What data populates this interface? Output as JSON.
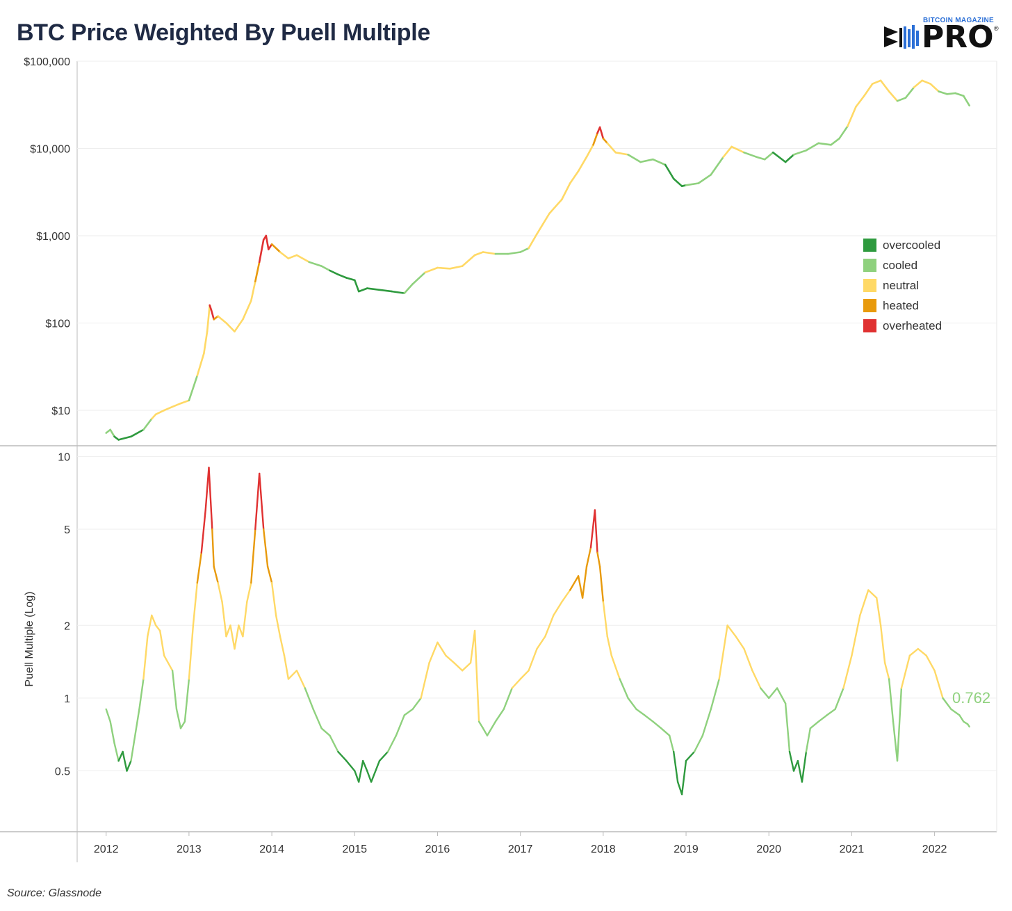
{
  "header": {
    "title": "BTC Price Weighted By Puell Multiple"
  },
  "logo": {
    "top_text": "BITCOIN MAGAZINE",
    "main_text": "PRO",
    "reg": "®"
  },
  "footer": {
    "source": "Source: Glassnode"
  },
  "legend": [
    {
      "label": "overcooled",
      "color": "#2e9a3e"
    },
    {
      "label": "cooled",
      "color": "#8fd17e"
    },
    {
      "label": "neutral",
      "color": "#ffd966"
    },
    {
      "label": "heated",
      "color": "#e89a0c"
    },
    {
      "label": "overheated",
      "color": "#e03131"
    }
  ],
  "chart_data": [
    {
      "type": "line",
      "title": "",
      "y_scale": "log",
      "ylim": [
        4,
        100000
      ],
      "xlim": [
        2011.65,
        2022.75
      ],
      "y_ticks": [
        {
          "value": 100000,
          "label": "$100,000"
        },
        {
          "value": 10000,
          "label": "$10,000"
        },
        {
          "value": 1000,
          "label": "$1,000"
        },
        {
          "value": 100,
          "label": "$100"
        },
        {
          "value": 10,
          "label": "$10"
        }
      ],
      "grid": true,
      "legend_position": "right",
      "series": [
        {
          "x": [
            2012.0,
            2012.05,
            2012.1,
            2012.15,
            2012.3,
            2012.45,
            2012.55,
            2012.6,
            2012.7,
            2012.8,
            2012.9,
            2013.0,
            2013.1,
            2013.18,
            2013.22,
            2013.25,
            2013.27,
            2013.3,
            2013.35,
            2013.45,
            2013.55,
            2013.65,
            2013.75,
            2013.8,
            2013.85,
            2013.9,
            2013.93,
            2013.96,
            2014.0,
            2014.1,
            2014.2,
            2014.3,
            2014.45,
            2014.6,
            2014.7,
            2014.8,
            2014.9,
            2015.0,
            2015.05,
            2015.15,
            2015.3,
            2015.45,
            2015.6,
            2015.7,
            2015.85,
            2016.0,
            2016.15,
            2016.3,
            2016.45,
            2016.55,
            2016.7,
            2016.85,
            2017.0,
            2017.1,
            2017.2,
            2017.35,
            2017.5,
            2017.6,
            2017.7,
            2017.8,
            2017.88,
            2017.93,
            2017.96,
            2018.0,
            2018.05,
            2018.15,
            2018.3,
            2018.45,
            2018.6,
            2018.75,
            2018.85,
            2018.95,
            2019.0,
            2019.15,
            2019.3,
            2019.45,
            2019.55,
            2019.7,
            2019.85,
            2019.95,
            2020.05,
            2020.2,
            2020.3,
            2020.45,
            2020.6,
            2020.75,
            2020.85,
            2020.95,
            2021.05,
            2021.15,
            2021.25,
            2021.35,
            2021.45,
            2021.55,
            2021.65,
            2021.75,
            2021.85,
            2021.95,
            2022.05,
            2022.15,
            2022.25,
            2022.35,
            2022.42
          ],
          "values": [
            5.5,
            6,
            5,
            4.6,
            5,
            6,
            8,
            9,
            10,
            11,
            12,
            13,
            25,
            45,
            80,
            160,
            140,
            110,
            120,
            100,
            80,
            110,
            180,
            300,
            500,
            900,
            1000,
            700,
            800,
            650,
            550,
            600,
            500,
            450,
            400,
            360,
            330,
            310,
            230,
            250,
            240,
            230,
            220,
            280,
            380,
            430,
            420,
            450,
            600,
            650,
            620,
            620,
            650,
            720,
            1050,
            1800,
            2600,
            4000,
            5500,
            8000,
            11000,
            15000,
            17500,
            13000,
            11500,
            9000,
            8500,
            7000,
            7500,
            6500,
            4500,
            3700,
            3800,
            4000,
            5000,
            8000,
            10500,
            9000,
            8000,
            7500,
            9000,
            7000,
            8500,
            9500,
            11500,
            11000,
            13000,
            18000,
            30000,
            40000,
            55000,
            60000,
            45000,
            35000,
            38000,
            50000,
            60000,
            55000,
            45000,
            42000,
            43000,
            40000,
            31000
          ],
          "classes": [
            1,
            1,
            0,
            0,
            0,
            1,
            2,
            2,
            2,
            2,
            2,
            1,
            2,
            2,
            2,
            4,
            4,
            3,
            2,
            2,
            2,
            2,
            2,
            3,
            4,
            4,
            4,
            4,
            3,
            2,
            2,
            2,
            1,
            1,
            0,
            0,
            0,
            0,
            0,
            0,
            0,
            0,
            1,
            1,
            2,
            2,
            2,
            2,
            2,
            2,
            1,
            1,
            1,
            2,
            2,
            2,
            2,
            2,
            2,
            2,
            3,
            4,
            4,
            3,
            2,
            2,
            1,
            1,
            1,
            0,
            0,
            0,
            1,
            1,
            1,
            2,
            2,
            1,
            1,
            1,
            0,
            0,
            1,
            1,
            1,
            1,
            1,
            2,
            2,
            2,
            2,
            2,
            2,
            1,
            1,
            2,
            2,
            2,
            1,
            1,
            1,
            1,
            1
          ]
        }
      ]
    },
    {
      "type": "line",
      "title": "",
      "y_scale": "log",
      "ylabel": "Puell Multiple (Log)",
      "ylim": [
        0.28,
        11
      ],
      "xlim": [
        2011.65,
        2022.75
      ],
      "y_ticks": [
        {
          "value": 10,
          "label": "10"
        },
        {
          "value": 5,
          "label": "5"
        },
        {
          "value": 2,
          "label": "2"
        },
        {
          "value": 1,
          "label": "1"
        },
        {
          "value": 0.5,
          "label": "0.5"
        }
      ],
      "x_ticks": [
        "2012",
        "2013",
        "2014",
        "2015",
        "2016",
        "2017",
        "2018",
        "2019",
        "2020",
        "2021",
        "2022"
      ],
      "last_value_label": "0.762",
      "grid": true,
      "thresholds": {
        "overcooled": 0.6,
        "cooled": 1.15,
        "neutral": 2.8,
        "heated": 4.5
      },
      "series": [
        {
          "x": [
            2012.0,
            2012.05,
            2012.1,
            2012.15,
            2012.2,
            2012.25,
            2012.3,
            2012.4,
            2012.45,
            2012.5,
            2012.55,
            2012.6,
            2012.65,
            2012.7,
            2012.8,
            2012.85,
            2012.9,
            2012.95,
            2013.0,
            2013.05,
            2013.1,
            2013.15,
            2013.2,
            2013.24,
            2013.28,
            2013.3,
            2013.35,
            2013.4,
            2013.45,
            2013.5,
            2013.55,
            2013.6,
            2013.65,
            2013.7,
            2013.75,
            2013.8,
            2013.85,
            2013.9,
            2013.95,
            2014.0,
            2014.05,
            2014.1,
            2014.15,
            2014.2,
            2014.3,
            2014.4,
            2014.5,
            2014.6,
            2014.7,
            2014.8,
            2014.9,
            2015.0,
            2015.05,
            2015.1,
            2015.15,
            2015.2,
            2015.3,
            2015.4,
            2015.5,
            2015.6,
            2015.7,
            2015.8,
            2015.9,
            2016.0,
            2016.1,
            2016.2,
            2016.3,
            2016.4,
            2016.45,
            2016.5,
            2016.55,
            2016.6,
            2016.7,
            2016.8,
            2016.9,
            2017.0,
            2017.1,
            2017.2,
            2017.3,
            2017.4,
            2017.5,
            2017.6,
            2017.7,
            2017.75,
            2017.8,
            2017.85,
            2017.9,
            2017.93,
            2017.96,
            2018.0,
            2018.05,
            2018.1,
            2018.2,
            2018.3,
            2018.4,
            2018.5,
            2018.6,
            2018.7,
            2018.8,
            2018.85,
            2018.9,
            2018.95,
            2019.0,
            2019.1,
            2019.2,
            2019.3,
            2019.4,
            2019.5,
            2019.6,
            2019.7,
            2019.8,
            2019.9,
            2020.0,
            2020.1,
            2020.2,
            2020.25,
            2020.3,
            2020.35,
            2020.4,
            2020.45,
            2020.5,
            2020.6,
            2020.7,
            2020.8,
            2020.9,
            2021.0,
            2021.1,
            2021.2,
            2021.3,
            2021.35,
            2021.4,
            2021.45,
            2021.5,
            2021.55,
            2021.6,
            2021.7,
            2021.8,
            2021.9,
            2022.0,
            2022.1,
            2022.2,
            2022.3,
            2022.35,
            2022.4,
            2022.42
          ],
          "values": [
            0.9,
            0.8,
            0.65,
            0.55,
            0.6,
            0.5,
            0.55,
            0.9,
            1.2,
            1.8,
            2.2,
            2.0,
            1.9,
            1.5,
            1.3,
            0.9,
            0.75,
            0.8,
            1.2,
            2.0,
            3.0,
            4.0,
            6.0,
            9.0,
            5.0,
            3.5,
            3.0,
            2.5,
            1.8,
            2.0,
            1.6,
            2.0,
            1.8,
            2.5,
            3.0,
            5.0,
            8.5,
            5.0,
            3.5,
            3.0,
            2.2,
            1.8,
            1.5,
            1.2,
            1.3,
            1.1,
            0.9,
            0.75,
            0.7,
            0.6,
            0.55,
            0.5,
            0.45,
            0.55,
            0.5,
            0.45,
            0.55,
            0.6,
            0.7,
            0.85,
            0.9,
            1.0,
            1.4,
            1.7,
            1.5,
            1.4,
            1.3,
            1.4,
            1.9,
            0.8,
            0.75,
            0.7,
            0.8,
            0.9,
            1.1,
            1.2,
            1.3,
            1.6,
            1.8,
            2.2,
            2.5,
            2.8,
            3.2,
            2.6,
            3.5,
            4.2,
            6.0,
            4.0,
            3.5,
            2.5,
            1.8,
            1.5,
            1.2,
            1.0,
            0.9,
            0.85,
            0.8,
            0.75,
            0.7,
            0.6,
            0.45,
            0.4,
            0.55,
            0.6,
            0.7,
            0.9,
            1.2,
            2.0,
            1.8,
            1.6,
            1.3,
            1.1,
            1.0,
            1.1,
            0.95,
            0.6,
            0.5,
            0.55,
            0.45,
            0.6,
            0.75,
            0.8,
            0.85,
            0.9,
            1.1,
            1.5,
            2.2,
            2.8,
            2.6,
            2.0,
            1.4,
            1.2,
            0.8,
            0.55,
            1.1,
            1.5,
            1.6,
            1.5,
            1.3,
            1.0,
            0.9,
            0.85,
            0.8,
            0.78,
            0.762
          ]
        }
      ]
    }
  ]
}
